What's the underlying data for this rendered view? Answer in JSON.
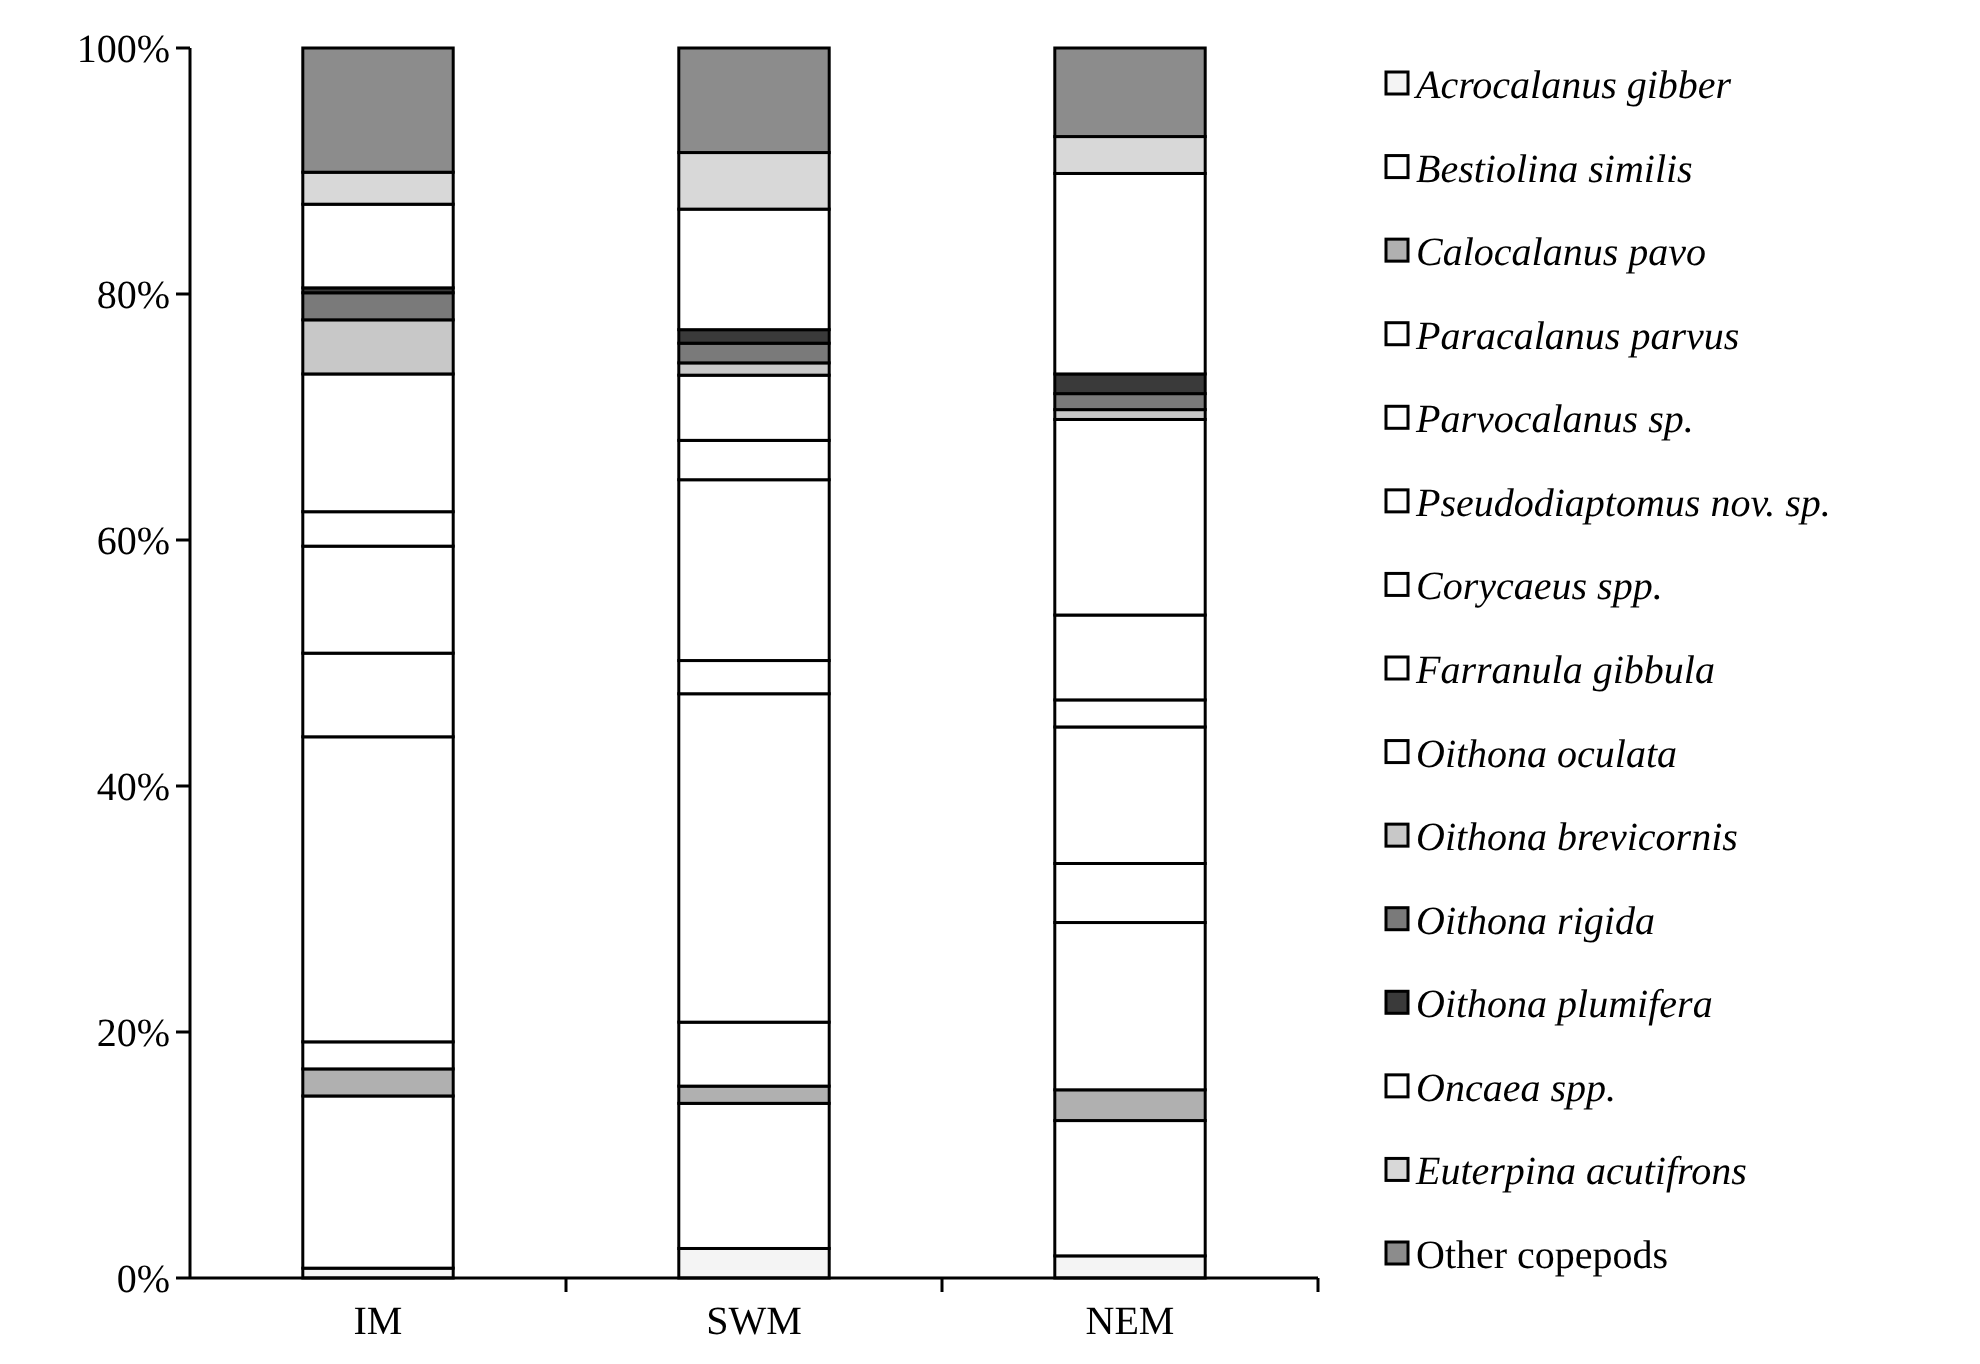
{
  "chart_data": {
    "type": "bar",
    "stacked": true,
    "categories": [
      "IM",
      "SWM",
      "NEM"
    ],
    "ylim": [
      0,
      100
    ],
    "yticks": [
      {
        "value": 0,
        "label": "0%"
      },
      {
        "value": 20,
        "label": "20%"
      },
      {
        "value": 40,
        "label": "40%"
      },
      {
        "value": 60,
        "label": "60%"
      },
      {
        "value": 80,
        "label": "80%"
      },
      {
        "value": 100,
        "label": "100%"
      }
    ],
    "legend": "right",
    "grid": false,
    "series": [
      {
        "name": "Acrocalanus gibber",
        "color": "#f4f4f4",
        "values": [
          0.8,
          2.4,
          1.8
        ]
      },
      {
        "name": "Bestiolina similis",
        "color": "#ffffff",
        "values": [
          14.0,
          11.8,
          11.0
        ]
      },
      {
        "name": "Calocalanus pavo",
        "color": "#b0b0b0",
        "values": [
          2.2,
          1.4,
          2.5
        ]
      },
      {
        "name": "Paracalanus parvus",
        "color": "#ffffff",
        "values": [
          2.2,
          5.2,
          13.6
        ]
      },
      {
        "name": "Parvocalanus sp.",
        "color": "#ffffff",
        "values": [
          24.8,
          26.7,
          4.8
        ]
      },
      {
        "name": "Pseudodiaptomus nov. sp.",
        "color": "#ffffff",
        "values": [
          6.8,
          2.7,
          11.1
        ]
      },
      {
        "name": "Corycaeus spp.",
        "color": "#ffffff",
        "values": [
          8.7,
          14.7,
          2.2
        ]
      },
      {
        "name": "Farranula gibbula",
        "color": "#ffffff",
        "values": [
          2.8,
          3.2,
          6.9
        ]
      },
      {
        "name": "Oithona oculata",
        "color": "#ffffff",
        "values": [
          11.2,
          5.3,
          15.9
        ]
      },
      {
        "name": "Oithona brevicornis",
        "color": "#c8c8c8",
        "values": [
          4.4,
          1.0,
          0.8
        ]
      },
      {
        "name": "Oithona rigida",
        "color": "#7a7a7a",
        "values": [
          2.2,
          1.6,
          1.3
        ]
      },
      {
        "name": "Oithona plumifera",
        "color": "#3a3a3a",
        "values": [
          0.4,
          1.1,
          1.6
        ]
      },
      {
        "name": "Oncaea spp.",
        "color": "#ffffff",
        "values": [
          6.8,
          9.8,
          16.3
        ]
      },
      {
        "name": "Euterpina acutifrons",
        "color": "#d8d8d8",
        "values": [
          2.6,
          4.6,
          3.0
        ]
      },
      {
        "name": "Other copepods",
        "color": "#8c8c8c",
        "values": [
          10.1,
          8.5,
          7.2
        ]
      }
    ]
  }
}
